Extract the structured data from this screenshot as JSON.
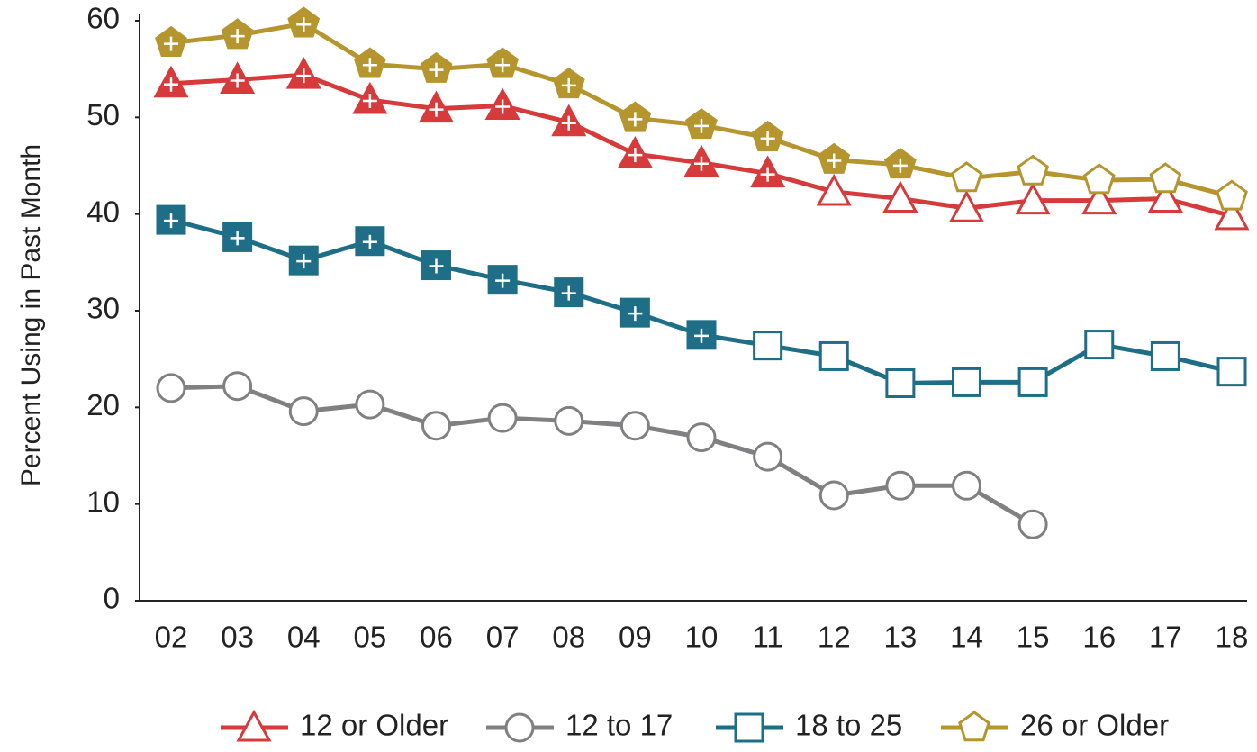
{
  "chart_data": {
    "type": "line",
    "y_label": "Percent Using in Past Month",
    "categories": [
      "02",
      "03",
      "04",
      "05",
      "06",
      "07",
      "08",
      "09",
      "10",
      "11",
      "12",
      "13",
      "14",
      "15",
      "16",
      "17",
      "18"
    ],
    "ylim": [
      0,
      60
    ],
    "yticks": [
      0,
      10,
      20,
      30,
      40,
      50,
      60
    ],
    "grid": false,
    "legend": "bottom",
    "series": [
      {
        "name": "12 or Older",
        "color": "#d63a3a",
        "marker": "triangle",
        "values": [
          53.5,
          53.9,
          54.4,
          51.8,
          50.9,
          51.2,
          49.5,
          46.2,
          45.3,
          44.2,
          42.3,
          41.6,
          40.6,
          41.4,
          41.4,
          41.6,
          39.8
        ],
        "filled": [
          true,
          true,
          true,
          true,
          true,
          true,
          true,
          true,
          true,
          true,
          false,
          false,
          false,
          false,
          false,
          false,
          false
        ]
      },
      {
        "name": "12 to 17",
        "color": "#808082",
        "marker": "circle",
        "values": [
          22.0,
          22.2,
          19.6,
          20.3,
          18.1,
          18.9,
          18.6,
          18.1,
          16.9,
          14.9,
          10.9,
          11.9,
          11.9,
          7.9,
          null,
          null,
          null
        ],
        "filled": [
          false,
          false,
          false,
          false,
          false,
          false,
          false,
          false,
          false,
          false,
          false,
          false,
          false,
          false,
          false,
          false,
          false
        ]
      },
      {
        "name": "18 to 25",
        "color": "#1e6e87",
        "marker": "square",
        "values": [
          39.4,
          37.6,
          35.2,
          37.2,
          34.7,
          33.2,
          31.9,
          29.8,
          27.5,
          26.4,
          25.3,
          22.5,
          22.6,
          22.6,
          26.5,
          25.3,
          23.7
        ],
        "filled": [
          true,
          true,
          true,
          true,
          true,
          true,
          true,
          true,
          true,
          false,
          false,
          false,
          false,
          false,
          false,
          false,
          false
        ]
      },
      {
        "name": "26 or Older",
        "color": "#b5962e",
        "marker": "pentagon",
        "values": [
          57.7,
          58.5,
          59.7,
          55.5,
          55.0,
          55.5,
          53.4,
          49.9,
          49.2,
          47.9,
          45.6,
          45.1,
          43.7,
          44.4,
          43.5,
          43.6,
          41.8
        ],
        "filled": [
          true,
          true,
          true,
          true,
          true,
          true,
          true,
          true,
          true,
          true,
          true,
          true,
          false,
          false,
          false,
          false,
          false
        ]
      }
    ]
  }
}
